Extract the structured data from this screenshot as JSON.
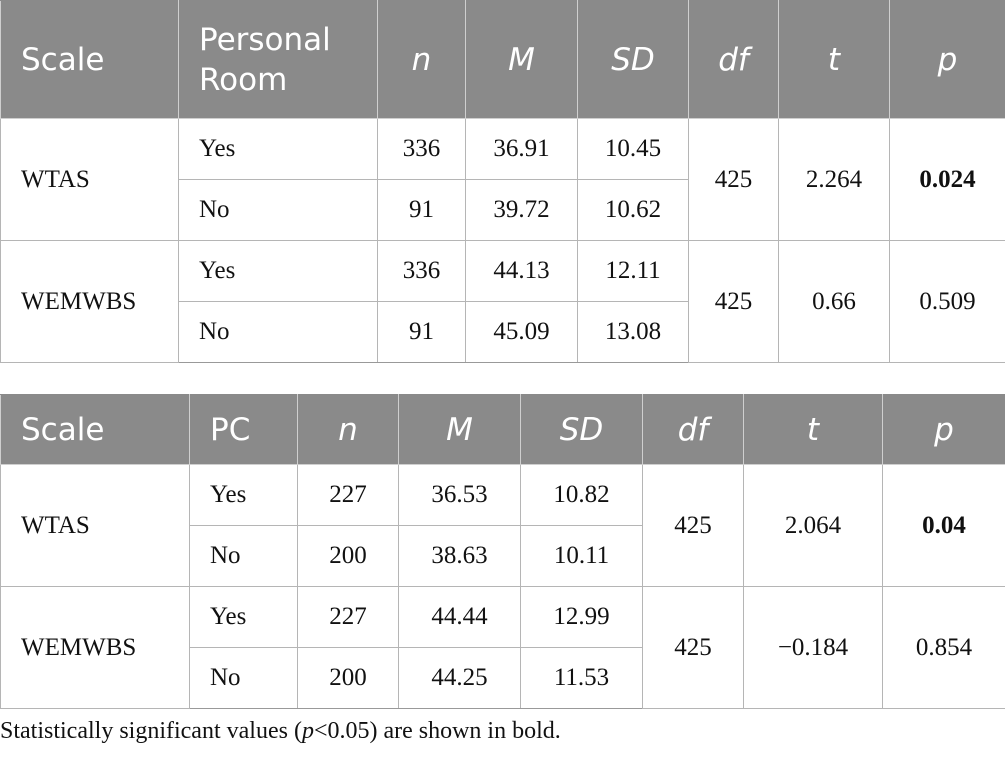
{
  "table1": {
    "headers": [
      "Scale",
      "Personal Room",
      "n",
      "M",
      "SD",
      "df",
      "t",
      "p"
    ],
    "groups": [
      {
        "scale": "WTAS",
        "df": "425",
        "t": "2.264",
        "p": "0.024",
        "rows": [
          {
            "group": "Yes",
            "n": "336",
            "M": "36.91",
            "SD": "10.45"
          },
          {
            "group": "No",
            "n": "91",
            "M": "39.72",
            "SD": "10.62"
          }
        ]
      },
      {
        "scale": "WEMWBS",
        "df": "425",
        "t": "0.66",
        "p": "0.509",
        "rows": [
          {
            "group": "Yes",
            "n": "336",
            "M": "44.13",
            "SD": "12.11"
          },
          {
            "group": "No",
            "n": "91",
            "M": "45.09",
            "SD": "13.08"
          }
        ]
      }
    ]
  },
  "table2": {
    "headers": [
      "Scale",
      "PC",
      "n",
      "M",
      "SD",
      "df",
      "t",
      "p"
    ],
    "groups": [
      {
        "scale": "WTAS",
        "df": "425",
        "t": "2.064",
        "p": "0.04",
        "rows": [
          {
            "group": "Yes",
            "n": "227",
            "M": "36.53",
            "SD": "10.82"
          },
          {
            "group": "No",
            "n": "200",
            "M": "38.63",
            "SD": "10.11"
          }
        ]
      },
      {
        "scale": "WEMWBS",
        "df": "425",
        "t": "−0.184",
        "p": "0.854",
        "rows": [
          {
            "group": "Yes",
            "n": "227",
            "M": "44.44",
            "SD": "12.99"
          },
          {
            "group": "No",
            "n": "200",
            "M": "44.25",
            "SD": "11.53"
          }
        ]
      }
    ]
  },
  "footnote": {
    "before": "Statistically significant values (",
    "p_symbol": "p",
    "after": "<0.05) are shown in bold."
  }
}
